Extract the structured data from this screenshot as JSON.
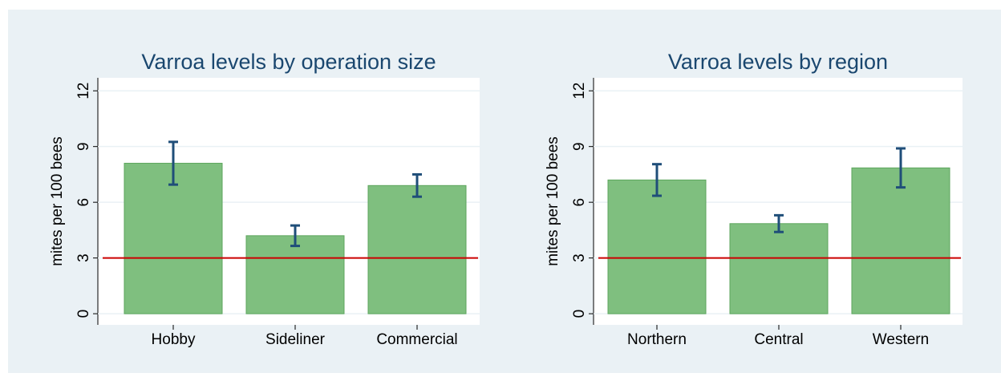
{
  "chart_data": [
    {
      "type": "bar",
      "title": "Varroa levels by operation size",
      "ylabel": "mites per 100 bees",
      "categories": [
        "Hobby",
        "Sideliner",
        "Commercial"
      ],
      "values": [
        8.1,
        4.2,
        6.9
      ],
      "errors": [
        1.15,
        0.55,
        0.6
      ],
      "color": "#7fbf7f",
      "error_color": "#1f4e79",
      "refline": 3,
      "refline_color": "#cc0000",
      "ylim": [
        -0.6,
        12.7
      ],
      "yticks": [
        0,
        3,
        6,
        9,
        12
      ],
      "grid": true
    },
    {
      "type": "bar",
      "title": "Varroa levels by region",
      "ylabel": "mites per 100 bees",
      "categories": [
        "Northern",
        "Central",
        "Western"
      ],
      "values": [
        7.2,
        4.85,
        7.85
      ],
      "errors": [
        0.85,
        0.45,
        1.05
      ],
      "color": "#7fbf7f",
      "error_color": "#1f4e79",
      "refline": 3,
      "refline_color": "#cc0000",
      "ylim": [
        -0.6,
        12.7
      ],
      "yticks": [
        0,
        3,
        6,
        9,
        12
      ],
      "grid": true
    }
  ]
}
